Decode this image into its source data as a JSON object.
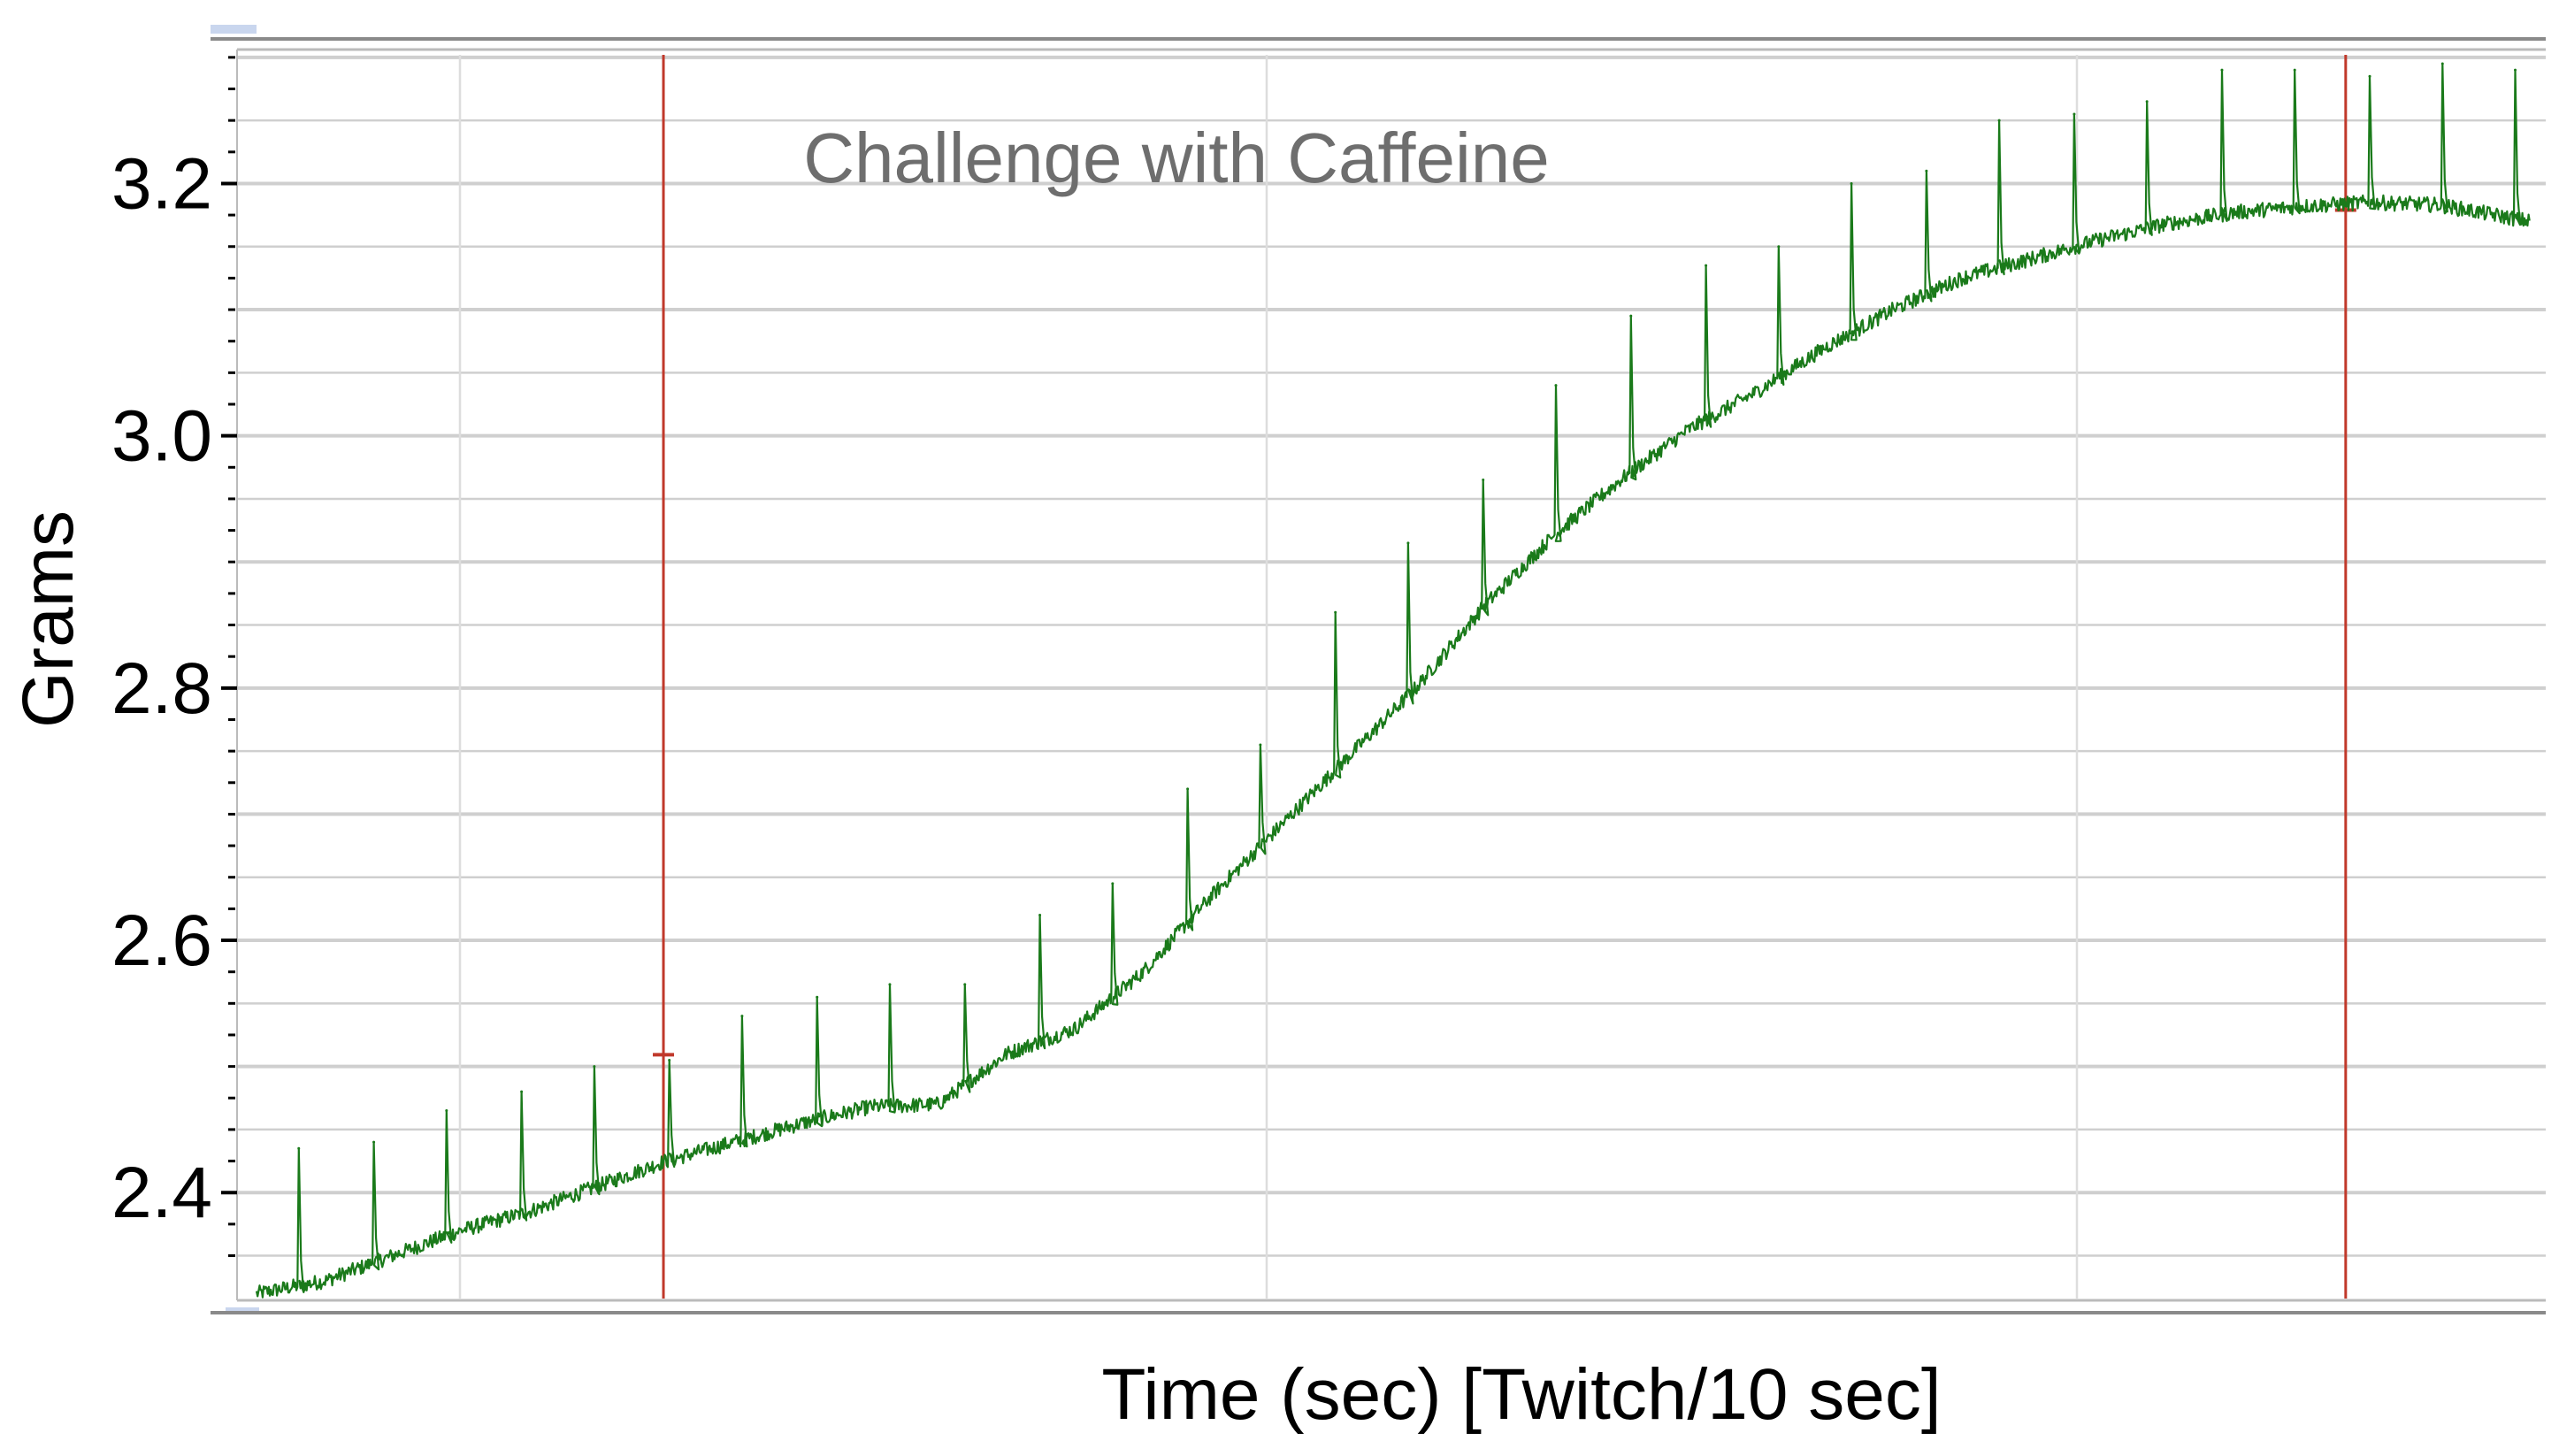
{
  "chart_data": {
    "type": "line",
    "title": "Challenge with Caffeine",
    "xlabel": "Time (sec) [Twitch/10 sec]",
    "ylabel": "Grams",
    "ylim": [
      2.316,
      3.302
    ],
    "xlim": [
      0,
      1000
    ],
    "yticks": [
      2.4,
      2.6,
      2.8,
      3.0,
      3.2
    ],
    "ytick_labels": [
      "2.4",
      "2.6",
      "2.8",
      "3.0",
      "3.2"
    ],
    "grid": true,
    "colors": {
      "line": "#1a7a1a",
      "marker": "#c0392b",
      "grid": "#cfcfcf"
    },
    "markers": [
      {
        "name": "",
        "x": 179
      },
      {
        "name": "",
        "x": 919
      }
    ],
    "series": [
      {
        "name": "",
        "baseline": {
          "x": [
            0,
            30,
            60,
            90,
            120,
            150,
            180,
            210,
            240,
            270,
            300,
            330,
            360,
            390,
            420,
            450,
            480,
            510,
            540,
            570,
            600,
            630,
            660,
            690,
            720,
            750,
            780,
            810,
            840,
            870,
            900,
            930,
            960,
            1000
          ],
          "y": [
            2.32,
            2.33,
            2.35,
            2.37,
            2.385,
            2.405,
            2.425,
            2.44,
            2.455,
            2.468,
            2.47,
            2.51,
            2.53,
            2.575,
            2.635,
            2.69,
            2.745,
            2.8,
            2.865,
            2.92,
            2.965,
            3.005,
            3.035,
            3.07,
            3.1,
            3.125,
            3.14,
            3.155,
            3.168,
            3.177,
            3.182,
            3.185,
            3.183,
            3.17
          ]
        },
        "twitch_times": [
          18,
          51,
          83,
          116,
          148,
          181,
          213,
          246,
          278,
          311,
          344,
          376,
          409,
          441,
          474,
          506,
          539,
          571,
          604,
          637,
          669,
          701,
          734,
          766,
          799,
          831,
          864,
          896,
          929,
          961,
          993
        ],
        "twitch_peaks": [
          2.435,
          2.44,
          2.465,
          2.48,
          2.5,
          2.505,
          2.54,
          2.555,
          2.565,
          2.565,
          2.62,
          2.645,
          2.72,
          2.755,
          2.86,
          2.915,
          2.965,
          3.04,
          3.095,
          3.135,
          3.15,
          3.2,
          3.21,
          3.25,
          3.255,
          3.265,
          3.29,
          3.29,
          3.285,
          3.295,
          3.29
        ]
      }
    ]
  }
}
